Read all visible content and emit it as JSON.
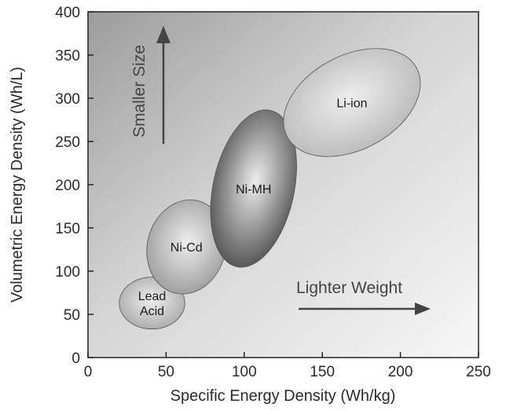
{
  "chart_data": {
    "type": "scatter",
    "xlabel": "Specific Energy Density (Wh/kg)",
    "ylabel": "Volumetric Energy Density (Wh/L)",
    "xlim": [
      0,
      250
    ],
    "ylim": [
      0,
      400
    ],
    "x_ticks": [
      "0",
      "50",
      "100",
      "150",
      "200",
      "250"
    ],
    "y_ticks": [
      "0",
      "50",
      "100",
      "150",
      "200",
      "250",
      "300",
      "350",
      "400"
    ],
    "grid": false,
    "series": [
      {
        "name": "Lead Acid",
        "label_lines": [
          "Lead",
          "Acid"
        ],
        "x": [
          20,
          62
        ],
        "y": [
          33,
          93
        ],
        "tone": "#a8a8a8"
      },
      {
        "name": "Ni-Cd",
        "label_lines": [
          "Ni-Cd"
        ],
        "x": [
          38,
          88
        ],
        "y": [
          73,
          183
        ],
        "tone": "#999999"
      },
      {
        "name": "Ni-MH",
        "label_lines": [
          "Ni-MH"
        ],
        "x": [
          80,
          132
        ],
        "y": [
          103,
          288
        ],
        "tone": "#4a4a4a"
      },
      {
        "name": "Li-ion",
        "label_lines": [
          "Li-ion"
        ],
        "x": [
          118,
          220
        ],
        "y": [
          233,
          357
        ],
        "tone": "#b8b8b8"
      }
    ],
    "annotations": [
      {
        "text": "Smaller Size",
        "direction": "up"
      },
      {
        "text": "Lighter Weight",
        "direction": "right"
      }
    ]
  }
}
